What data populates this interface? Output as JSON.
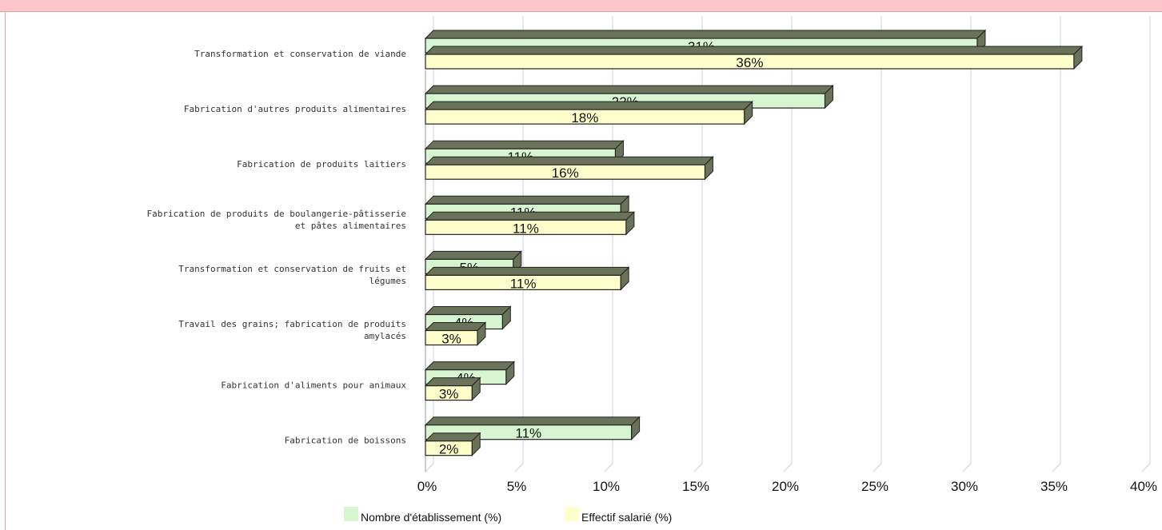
{
  "chart_data": {
    "type": "bar",
    "orientation": "horizontal",
    "categories": [
      [
        "Transformation et conservation de viande"
      ],
      [
        "Fabrication d'autres produits alimentaires"
      ],
      [
        "Fabrication de produits laitiers"
      ],
      [
        "Fabrication de produits de boulangerie-pâtisserie",
        "et pâtes alimentaires"
      ],
      [
        "Transformation et conservation de fruits et",
        "légumes"
      ],
      [
        "Travail des grains; fabrication de produits",
        "amylacés"
      ],
      [
        "Fabrication d'aliments pour animaux"
      ],
      [
        "Fabrication de boissons"
      ]
    ],
    "series": [
      {
        "name": "Nombre d'établissement (%)",
        "color": "#d6f5d0",
        "values": [
          31,
          22,
          11,
          11,
          5,
          4,
          4,
          11
        ],
        "labels": [
          "31%",
          "22%",
          "11%",
          "11%",
          "5%",
          "4%",
          "4%",
          "11%"
        ],
        "bar_ends": [
          30.8,
          22.3,
          10.6,
          10.9,
          4.9,
          4.3,
          4.5,
          11.5
        ]
      },
      {
        "name": "Effectif salarié (%)",
        "color": "#ffffcc",
        "values": [
          36,
          18,
          16,
          11,
          11,
          3,
          3,
          2
        ],
        "labels": [
          "36%",
          "18%",
          "16%",
          "11%",
          "11%",
          "3%",
          "3%",
          "2%"
        ],
        "bar_ends": [
          36.2,
          17.8,
          15.6,
          11.2,
          10.9,
          2.9,
          2.6,
          2.6
        ]
      }
    ],
    "xlim": [
      0,
      40
    ],
    "xticks": [
      "0%",
      "5%",
      "10%",
      "15%",
      "20%",
      "25%",
      "30%",
      "35%",
      "40%"
    ],
    "title": "",
    "xlabel": "",
    "ylabel": "",
    "grid": "vertical",
    "legend": "bottom-center",
    "style": "3d",
    "depth_color": "#6b725a",
    "gridline_color": "#cfcfe0"
  }
}
